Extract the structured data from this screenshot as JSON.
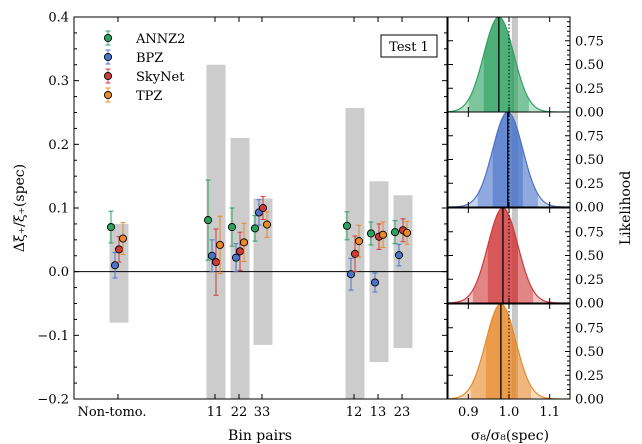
{
  "chart_data": [
    {
      "type": "scatter",
      "ylabel": "Δξ₊/ξ₊(spec)",
      "xlabel": "Bin pairs",
      "ylim": [
        -0.2,
        0.4
      ],
      "yticks": [
        "−0.2",
        "−0.1",
        "0.0",
        "0.1",
        "0.2",
        "0.3",
        "0.4"
      ],
      "xticklabels": [
        "Non-tomo.",
        "11",
        "22",
        "33",
        "12",
        "13",
        "23"
      ],
      "annotation": "Test 1",
      "reference_line": 0.0,
      "legend_placement": "top-left",
      "series": [
        {
          "name": "ANNZ2",
          "color": "#2ca25f",
          "points": [
            {
              "x": "Non-tomo.",
              "y": 0.07,
              "err": 0.025
            },
            {
              "x": "11",
              "y": 0.081,
              "err": 0.063
            },
            {
              "x": "22",
              "y": 0.07,
              "err": 0.03
            },
            {
              "x": "33",
              "y": 0.068,
              "err": 0.02
            },
            {
              "x": "12",
              "y": 0.072,
              "err": 0.022
            },
            {
              "x": "13",
              "y": 0.06,
              "err": 0.018
            },
            {
              "x": "23",
              "y": 0.062,
              "err": 0.018
            }
          ]
        },
        {
          "name": "BPZ",
          "color": "#4a74c9",
          "points": [
            {
              "x": "Non-tomo.",
              "y": 0.01,
              "err": 0.02
            },
            {
              "x": "11",
              "y": 0.025,
              "err": 0.025
            },
            {
              "x": "22",
              "y": 0.022,
              "err": 0.022
            },
            {
              "x": "33",
              "y": 0.093,
              "err": 0.02
            },
            {
              "x": "12",
              "y": -0.004,
              "err": 0.025
            },
            {
              "x": "13",
              "y": -0.017,
              "err": 0.015
            },
            {
              "x": "23",
              "y": 0.026,
              "err": 0.017
            }
          ]
        },
        {
          "name": "SkyNet",
          "color": "#d03a3a",
          "points": [
            {
              "x": "Non-tomo.",
              "y": 0.035,
              "err": 0.02
            },
            {
              "x": "11",
              "y": 0.015,
              "err": 0.052
            },
            {
              "x": "22",
              "y": 0.032,
              "err": 0.03
            },
            {
              "x": "33",
              "y": 0.1,
              "err": 0.018
            },
            {
              "x": "12",
              "y": 0.028,
              "err": 0.028
            },
            {
              "x": "13",
              "y": 0.055,
              "err": 0.02
            },
            {
              "x": "23",
              "y": 0.065,
              "err": 0.018
            }
          ]
        },
        {
          "name": "TPZ",
          "color": "#e8892a",
          "points": [
            {
              "x": "Non-tomo.",
              "y": 0.052,
              "err": 0.025
            },
            {
              "x": "11",
              "y": 0.042,
              "err": 0.045
            },
            {
              "x": "22",
              "y": 0.046,
              "err": 0.03
            },
            {
              "x": "33",
              "y": 0.074,
              "err": 0.02
            },
            {
              "x": "12",
              "y": 0.048,
              "err": 0.025
            },
            {
              "x": "13",
              "y": 0.058,
              "err": 0.02
            },
            {
              "x": "23",
              "y": 0.061,
              "err": 0.018
            }
          ]
        }
      ],
      "gray_bands": [
        {
          "x": "Non-tomo.",
          "ymin": -0.08,
          "ymax": 0.075
        },
        {
          "x": "11",
          "ymin": -0.2,
          "ymax": 0.325
        },
        {
          "x": "22",
          "ymin": -0.2,
          "ymax": 0.21
        },
        {
          "x": "33",
          "ymin": -0.115,
          "ymax": 0.115
        },
        {
          "x": "12",
          "ymin": -0.2,
          "ymax": 0.257
        },
        {
          "x": "13",
          "ymin": -0.142,
          "ymax": 0.142
        },
        {
          "x": "23",
          "ymin": -0.12,
          "ymax": 0.12
        }
      ]
    },
    {
      "type": "area",
      "xlabel": "σ₈/σ₈(spec)",
      "ylabel": "Likelihood",
      "xlim": [
        0.85,
        1.15
      ],
      "xticks": [
        "0.9",
        "1.0",
        "1.1"
      ],
      "yticks": [
        "0.00",
        "0.25",
        "0.50",
        "0.75"
      ],
      "ylim": [
        0,
        1.0
      ],
      "reference_x": 1.0,
      "gray_band_x": [
        1.007,
        1.022
      ],
      "panels": [
        {
          "name": "ANNZ2",
          "color": "#2ca25f",
          "mean": 0.975,
          "sigma": 0.037
        },
        {
          "name": "BPZ",
          "color": "#4a74c9",
          "mean": 0.997,
          "sigma": 0.037
        },
        {
          "name": "SkyNet",
          "color": "#d03a3a",
          "mean": 0.985,
          "sigma": 0.037
        },
        {
          "name": "TPZ",
          "color": "#e8892a",
          "mean": 0.98,
          "sigma": 0.037
        }
      ]
    }
  ]
}
